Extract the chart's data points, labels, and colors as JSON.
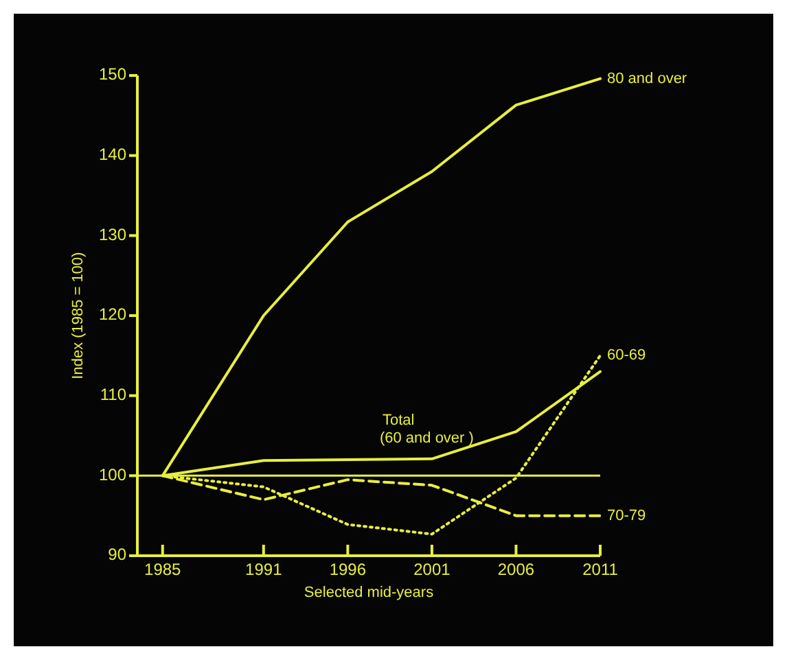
{
  "chart_data": {
    "type": "line",
    "xlabel": "Selected mid-years",
    "ylabel": "Index (1985 = 100)",
    "x": [
      1985,
      1991,
      1996,
      2001,
      2006,
      2011
    ],
    "xlim": [
      1983.5,
      2011
    ],
    "xticks": [
      1985,
      1991,
      1996,
      2001,
      2006,
      2011
    ],
    "ylim": [
      90,
      150
    ],
    "yticks": [
      90,
      100,
      110,
      120,
      130,
      140,
      150
    ],
    "grid": false,
    "marker": "none",
    "ref_lines": [
      {
        "axis": "y",
        "value": 100,
        "color": "#e8ef3c",
        "line_style": "solid"
      }
    ],
    "series": [
      {
        "name": "80 and over",
        "color": "#e8ef3c",
        "line_style": "solid",
        "values": [
          100,
          120,
          131.7,
          138,
          146.3,
          149.6
        ]
      },
      {
        "name": "60-69",
        "color": "#e8ef3c",
        "line_style": "dotted",
        "values": [
          100,
          98.6,
          93.9,
          92.7,
          99.7,
          115
        ]
      },
      {
        "name": "Total\n(60 and over )",
        "color": "#e8ef3c",
        "line_style": "solid",
        "values": [
          100,
          101.9,
          102,
          102.1,
          105.5,
          113
        ]
      },
      {
        "name": "70-79",
        "color": "#e8ef3c",
        "line_style": "dashed",
        "values": [
          100,
          97,
          99.5,
          98.8,
          95,
          95
        ]
      }
    ]
  }
}
